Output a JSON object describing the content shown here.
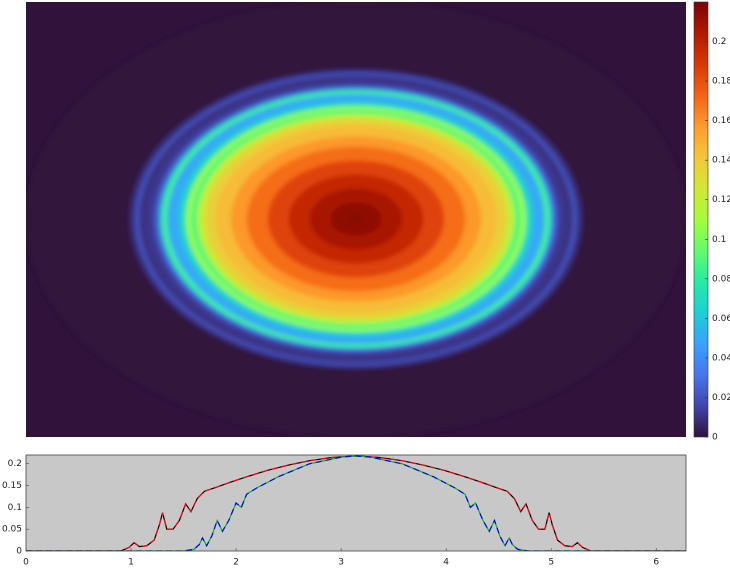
{
  "chart_data": [
    {
      "type": "heatmap",
      "clim": [
        0,
        0.22
      ],
      "colorbar_ticks": [
        0,
        0.02,
        0.04,
        0.06,
        0.08,
        0.1,
        0.12,
        0.14,
        0.16,
        0.18,
        0.2
      ],
      "colormap": [
        "#30123b",
        "#4145ab",
        "#4675ed",
        "#39a2fc",
        "#1bcfd4",
        "#24eca6",
        "#61fc6c",
        "#a4fc3b",
        "#d1e834",
        "#f3c63a",
        "#fe9b2d",
        "#f36315",
        "#d93806",
        "#b11901",
        "#7a0402"
      ]
    },
    {
      "type": "line",
      "xlim": [
        0,
        6.2832
      ],
      "ylim": [
        0,
        0.22
      ],
      "xticks": [
        0,
        1,
        2,
        3,
        4,
        5,
        6
      ],
      "yticks": [
        0,
        0.05,
        0.1,
        0.15,
        0.2
      ],
      "background": "#c8c8c8",
      "series": [
        {
          "color": "#000000",
          "dash_color": "#ff0000",
          "x": [
            0,
            0.9,
            0.98,
            1.03,
            1.08,
            1.15,
            1.22,
            1.27,
            1.3,
            1.34,
            1.4,
            1.46,
            1.52,
            1.57,
            1.63,
            1.7,
            1.8,
            1.95,
            2.1,
            2.3,
            2.5,
            2.7,
            2.9,
            3.14,
            3.38,
            3.58,
            3.78,
            3.98,
            4.18,
            4.33,
            4.48,
            4.58,
            4.65,
            4.71,
            4.76,
            4.82,
            4.88,
            4.94,
            4.98,
            5.01,
            5.06,
            5.13,
            5.2,
            5.25,
            5.3,
            5.38,
            6.28
          ],
          "values": [
            0,
            0,
            0.008,
            0.019,
            0.01,
            0.012,
            0.025,
            0.06,
            0.088,
            0.05,
            0.05,
            0.07,
            0.108,
            0.09,
            0.12,
            0.137,
            0.145,
            0.158,
            0.17,
            0.185,
            0.197,
            0.207,
            0.214,
            0.218,
            0.214,
            0.207,
            0.197,
            0.185,
            0.17,
            0.158,
            0.145,
            0.137,
            0.12,
            0.09,
            0.108,
            0.07,
            0.05,
            0.05,
            0.088,
            0.06,
            0.025,
            0.012,
            0.01,
            0.019,
            0.008,
            0,
            0
          ]
        },
        {
          "color": "#00c000",
          "dash_color": "#0000ff",
          "x": [
            0,
            1.5,
            1.6,
            1.65,
            1.68,
            1.72,
            1.77,
            1.82,
            1.87,
            1.93,
            2.0,
            2.05,
            2.1,
            2.2,
            2.4,
            2.7,
            3.0,
            3.14,
            3.28,
            3.58,
            3.88,
            4.08,
            4.18,
            4.23,
            4.28,
            4.35,
            4.41,
            4.46,
            4.51,
            4.56,
            4.6,
            4.63,
            4.68,
            4.78,
            6.28
          ],
          "values": [
            0,
            0,
            0.004,
            0.015,
            0.03,
            0.012,
            0.035,
            0.07,
            0.045,
            0.07,
            0.11,
            0.1,
            0.13,
            0.145,
            0.17,
            0.2,
            0.215,
            0.218,
            0.215,
            0.2,
            0.17,
            0.145,
            0.13,
            0.1,
            0.11,
            0.07,
            0.045,
            0.07,
            0.035,
            0.012,
            0.03,
            0.015,
            0.004,
            0,
            0
          ]
        }
      ]
    }
  ]
}
